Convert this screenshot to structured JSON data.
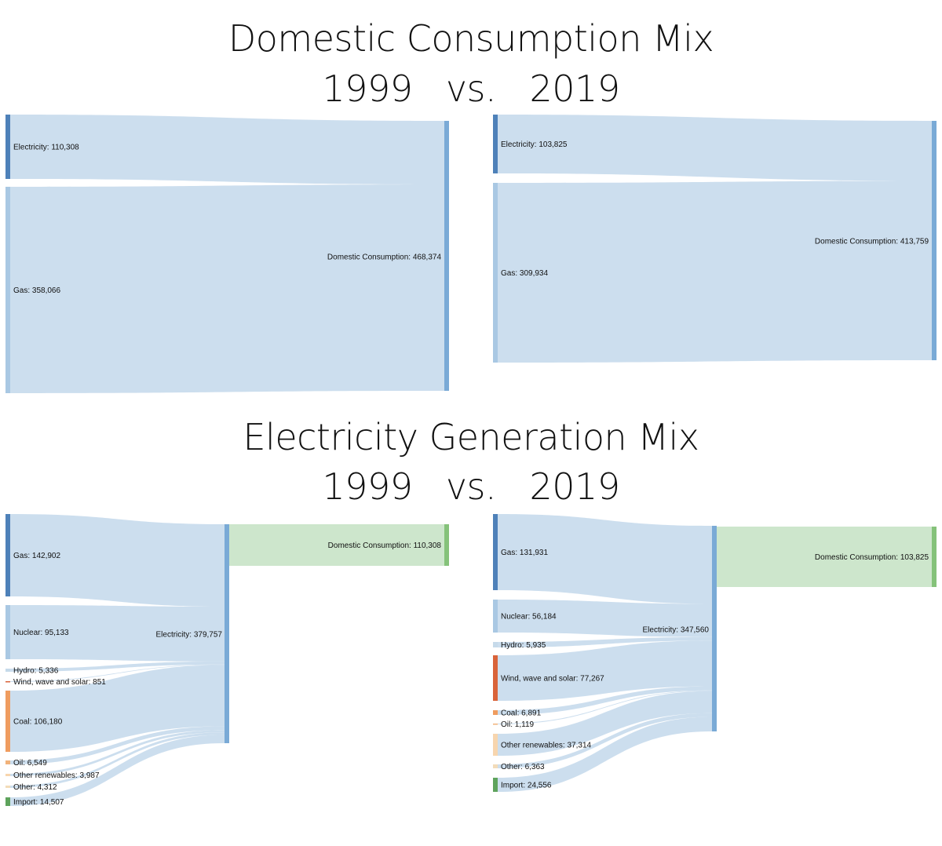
{
  "titles": {
    "top_line1": "Domestic Consumption Mix",
    "top_line2": "1999   vs.   2019",
    "bottom_line1": "Electricity Generation Mix",
    "bottom_line2": "1999   vs.   2019"
  },
  "colors": {
    "link": "#c9dced",
    "link_domestic": "#cde6cc",
    "electricity_node": "#7aaad6",
    "domestic_node": "#85c27a",
    "gas": "#4e81b9",
    "nuclear": "#a9c8e3",
    "hydro": "#c6daea",
    "wind": "#d9633a",
    "coal": "#ef9c5f",
    "oil": "#f1b27a",
    "other_renewables": "#f7d5ae",
    "other": "#f3dcb9",
    "import": "#5ea35c"
  },
  "chart_data": [
    {
      "type": "sankey",
      "title": "Domestic Consumption Mix 1999",
      "sources": [
        {
          "name": "Electricity",
          "value": 110308
        },
        {
          "name": "Gas",
          "value": 358066
        }
      ],
      "target": {
        "name": "Domestic Consumption",
        "value": 468374
      }
    },
    {
      "type": "sankey",
      "title": "Domestic Consumption Mix 2019",
      "sources": [
        {
          "name": "Electricity",
          "value": 103825
        },
        {
          "name": "Gas",
          "value": 309934
        }
      ],
      "target": {
        "name": "Domestic Consumption",
        "value": 413759
      }
    },
    {
      "type": "sankey",
      "title": "Electricity Generation Mix 1999",
      "sources": [
        {
          "name": "Gas",
          "value": 142902
        },
        {
          "name": "Nuclear",
          "value": 95133
        },
        {
          "name": "Hydro",
          "value": 5336
        },
        {
          "name": "Wind, wave and solar",
          "value": 851
        },
        {
          "name": "Coal",
          "value": 106180
        },
        {
          "name": "Oil",
          "value": 6549
        },
        {
          "name": "Other renewables",
          "value": 3987
        },
        {
          "name": "Other",
          "value": 4312
        },
        {
          "name": "Import",
          "value": 14507
        }
      ],
      "target": {
        "name": "Electricity",
        "value": 379757
      },
      "output": {
        "name": "Domestic Consumption",
        "value": 110308
      }
    },
    {
      "type": "sankey",
      "title": "Electricity Generation Mix 2019",
      "sources": [
        {
          "name": "Gas",
          "value": 131931
        },
        {
          "name": "Nuclear",
          "value": 56184
        },
        {
          "name": "Hydro",
          "value": 5935
        },
        {
          "name": "Wind, wave and solar",
          "value": 77267
        },
        {
          "name": "Coal",
          "value": 6891
        },
        {
          "name": "Oil",
          "value": 1119
        },
        {
          "name": "Other renewables",
          "value": 37314
        },
        {
          "name": "Other",
          "value": 6363
        },
        {
          "name": "Import",
          "value": 24556
        }
      ],
      "target": {
        "name": "Electricity",
        "value": 347560
      },
      "output": {
        "name": "Domestic Consumption",
        "value": 103825
      }
    }
  ]
}
